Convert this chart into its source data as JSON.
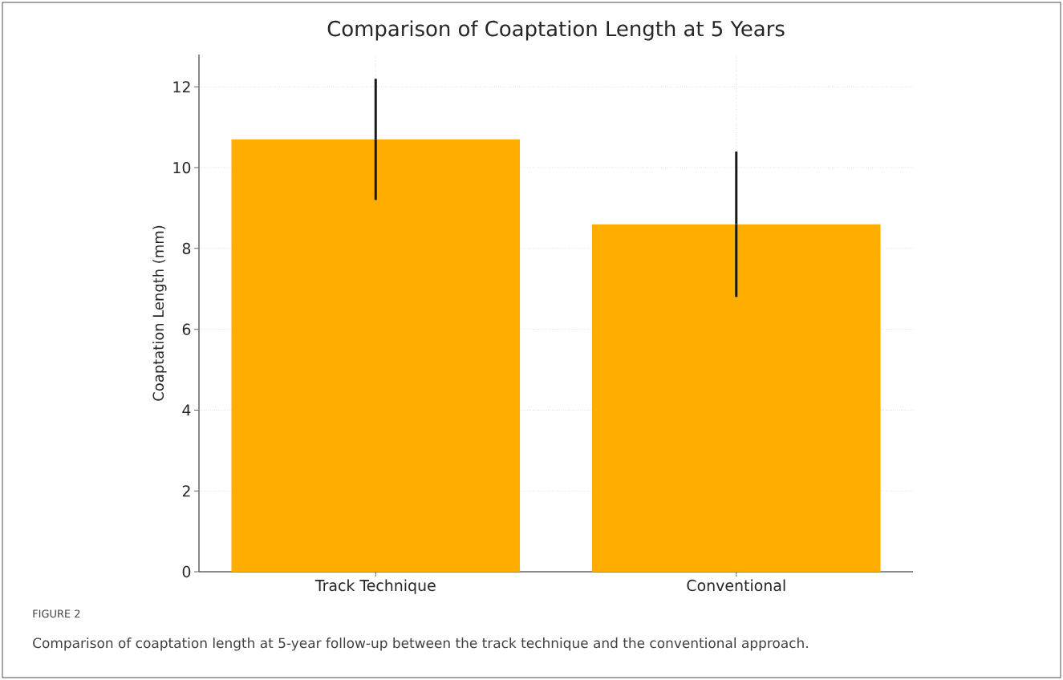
{
  "chart_data": {
    "type": "bar",
    "title": "Comparison of Coaptation Length at 5 Years",
    "ylabel": "Coaptation Length (mm)",
    "categories": [
      "Track Technique",
      "Conventional"
    ],
    "values": [
      10.7,
      8.6
    ],
    "errors": [
      1.5,
      1.8
    ],
    "color": "#ffae00",
    "ylim": [
      0,
      12.8
    ],
    "yticks": [
      0,
      2,
      4,
      6,
      8,
      10,
      12
    ],
    "grid": true,
    "annotations": [
      "FIGURE 2",
      "Comparison of coaptation length at 5-year follow-up between the track technique and the conventional approach."
    ]
  }
}
